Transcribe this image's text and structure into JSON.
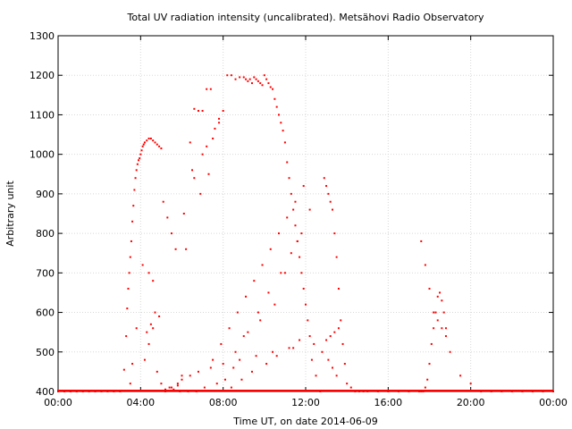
{
  "chart_data": {
    "type": "scatter",
    "title": "Total UV radiation intensity (uncalibrated). Metsähovi Radio Observatory",
    "xlabel": "Time UT, on date 2014-06-09",
    "ylabel": "Arbitrary unit",
    "xlim": [
      0,
      24
    ],
    "ylim": [
      400,
      1300
    ],
    "x_ticks": [
      {
        "value": 0,
        "label": "00:00"
      },
      {
        "value": 4,
        "label": "04:00"
      },
      {
        "value": 8,
        "label": "08:00"
      },
      {
        "value": 12,
        "label": "12:00"
      },
      {
        "value": 16,
        "label": "16:00"
      },
      {
        "value": 20,
        "label": "20:00"
      },
      {
        "value": 24,
        "label": "00:00"
      }
    ],
    "y_ticks": [
      400,
      500,
      600,
      700,
      800,
      900,
      1000,
      1100,
      1200,
      1300
    ],
    "grid": true,
    "marker_color": "#ff0000",
    "series": [
      {
        "x": [
          0.0,
          0.3,
          0.6,
          0.9,
          1.2,
          1.5,
          1.8,
          2.1,
          2.4,
          2.7,
          3.0,
          3.2,
          3.3,
          3.35,
          3.4,
          3.45,
          3.5,
          3.55,
          3.6,
          3.65,
          3.7,
          3.75,
          3.8,
          3.85,
          3.9,
          3.95,
          4.0,
          4.05,
          4.1,
          4.15,
          4.2,
          4.3,
          4.4,
          4.5,
          4.6,
          4.7,
          4.8,
          4.9,
          5.0,
          3.5,
          3.6,
          3.8,
          4.2,
          4.4,
          4.6,
          4.7,
          4.8,
          5.0,
          5.2,
          5.4,
          5.6,
          5.8,
          6.0,
          6.2,
          6.4,
          6.6,
          6.8,
          7.0,
          7.2,
          7.4,
          7.6,
          7.8,
          8.0,
          8.2,
          8.4,
          8.6,
          8.8,
          9.0,
          9.1,
          9.2,
          9.3,
          9.4,
          9.5,
          9.6,
          9.7,
          9.8,
          9.9,
          10.0,
          10.1,
          10.2,
          10.3,
          10.4,
          10.5,
          10.6,
          10.7,
          10.8,
          10.9,
          11.0,
          11.1,
          11.2,
          11.3,
          11.4,
          11.5,
          11.6,
          11.7,
          11.8,
          11.9,
          12.0,
          12.1,
          12.2,
          12.3,
          12.5,
          12.7,
          12.9,
          13.0,
          13.1,
          13.2,
          13.3,
          13.4,
          13.5,
          13.6,
          13.7,
          13.8,
          13.9,
          14.0,
          14.2,
          14.4,
          14.6,
          14.8,
          15.0,
          15.5,
          16.0,
          16.5,
          17.0,
          17.5,
          17.6,
          17.7,
          17.8,
          17.9,
          18.0,
          18.1,
          18.2,
          18.3,
          18.4,
          18.5,
          18.6,
          18.7,
          18.8,
          19.0,
          19.5,
          20.0,
          20.5,
          21.0,
          21.5,
          22.0,
          22.5,
          23.0,
          23.5,
          24.0,
          5.9,
          6.3,
          6.7,
          7.1,
          7.5,
          7.9,
          8.3,
          8.7,
          9.1,
          9.5,
          9.9,
          10.3,
          10.7,
          11.1,
          11.5,
          11.9,
          6.5,
          7.0,
          7.5,
          8.1,
          8.6,
          9.2,
          9.7,
          10.2,
          10.8,
          11.3,
          11.8,
          6.1,
          6.9,
          7.3,
          7.7,
          8.5,
          9.0,
          9.8,
          10.5,
          11.0,
          11.6,
          12.2,
          6.6,
          7.2,
          7.8,
          8.4,
          8.9,
          9.4,
          10.1,
          10.6,
          11.2,
          11.7,
          4.3,
          4.5,
          4.9,
          5.1,
          5.3,
          5.5,
          5.7,
          4.1,
          4.4,
          4.6,
          5.2,
          5.5,
          5.8,
          6.0,
          6.4,
          6.8,
          7.4,
          8.0,
          8.8,
          9.6,
          10.4,
          11.4,
          12.4,
          13.0,
          13.2,
          13.4,
          13.6,
          12.8,
          13.1,
          13.3,
          13.5,
          17.6,
          17.8,
          18.0,
          18.2,
          18.4,
          18.6,
          18.8
        ],
        "y": [
          400,
          400,
          400,
          400,
          400,
          400,
          400,
          400,
          400,
          400,
          400,
          455,
          540,
          610,
          660,
          700,
          740,
          780,
          830,
          870,
          910,
          940,
          960,
          975,
          985,
          990,
          1000,
          1010,
          1020,
          1025,
          1030,
          1035,
          1040,
          1040,
          1035,
          1030,
          1025,
          1020,
          1015,
          420,
          470,
          560,
          480,
          520,
          560,
          600,
          450,
          420,
          405,
          410,
          405,
          415,
          440,
          760,
          1030,
          1115,
          1110,
          1110,
          1165,
          1165,
          1065,
          1090,
          1110,
          1200,
          1200,
          1190,
          1195,
          1195,
          1190,
          1185,
          1190,
          1180,
          1195,
          1190,
          1185,
          1180,
          1175,
          1200,
          1190,
          1180,
          1170,
          1165,
          1140,
          1120,
          1100,
          1080,
          1060,
          1030,
          980,
          940,
          900,
          860,
          820,
          780,
          740,
          700,
          660,
          620,
          580,
          540,
          480,
          440,
          400,
          940,
          920,
          900,
          880,
          860,
          800,
          740,
          660,
          580,
          520,
          470,
          420,
          410,
          400,
          400,
          400,
          400,
          400,
          400,
          400,
          400,
          400,
          400,
          400,
          410,
          430,
          470,
          520,
          560,
          600,
          640,
          650,
          630,
          600,
          560,
          500,
          440,
          420,
          400,
          400,
          400,
          400,
          400,
          400,
          400,
          400,
          400,
          400,
          400,
          410,
          480,
          520,
          560,
          600,
          640,
          680,
          720,
          760,
          800,
          840,
          880,
          920,
          960,
          1000,
          1040,
          430,
          500,
          550,
          600,
          650,
          700,
          750,
          800,
          850,
          900,
          950,
          420,
          460,
          540,
          580,
          620,
          700,
          780,
          860,
          940,
          1020,
          1080,
          410,
          430,
          450,
          470,
          490,
          510,
          530,
          550,
          570,
          590,
          880,
          840,
          800,
          760,
          720,
          700,
          680,
          400,
          410,
          420,
          430,
          440,
          450,
          460,
          470,
          480,
          490,
          500,
          510,
          520,
          530,
          540,
          550,
          560,
          500,
          480,
          460,
          440,
          780,
          720,
          660,
          600,
          580,
          560,
          540
        ]
      }
    ]
  }
}
